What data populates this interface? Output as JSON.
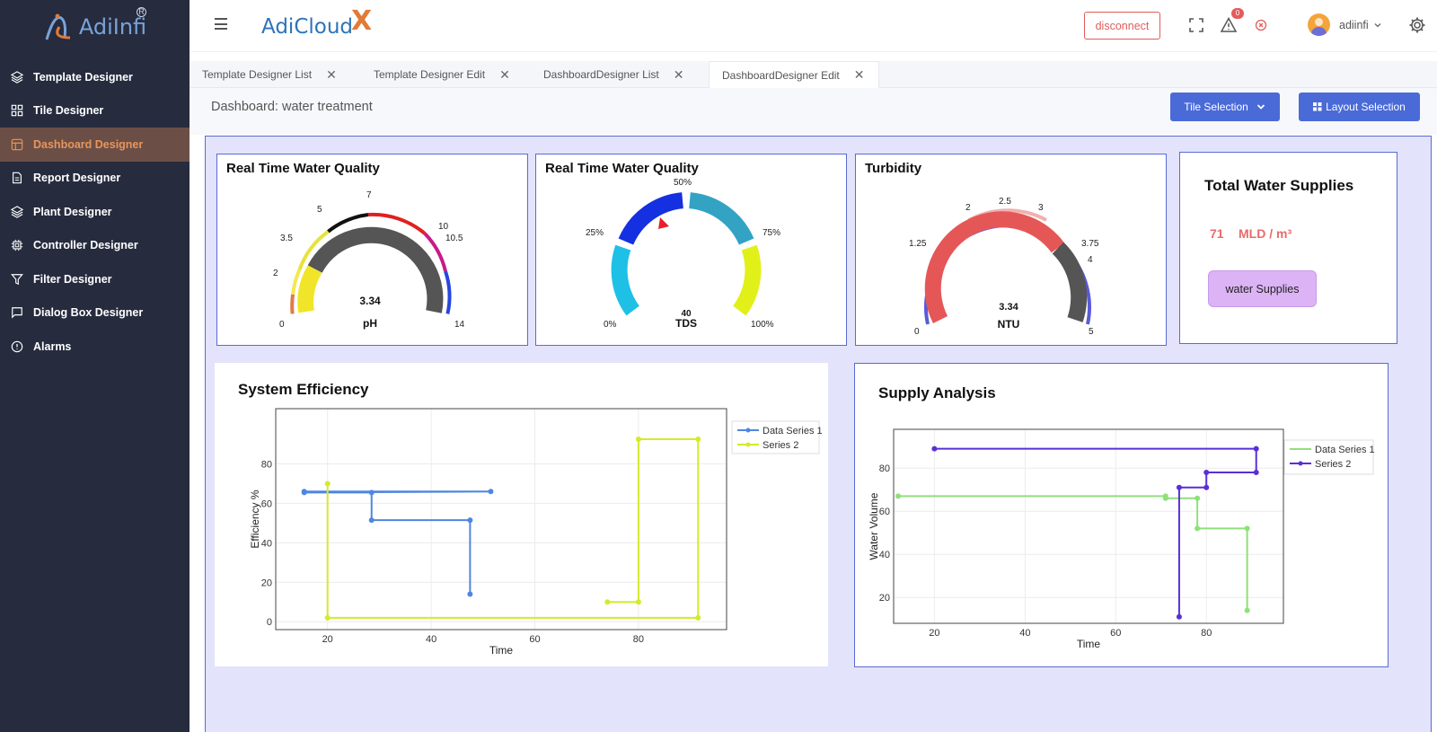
{
  "app": {
    "logo_text": "AdiInfi",
    "brand_text": "AdiCloud",
    "brand_x": "X"
  },
  "sidebar": {
    "items": [
      {
        "label": "Template Designer",
        "icon": "layers-icon"
      },
      {
        "label": "Tile Designer",
        "icon": "grid-icon"
      },
      {
        "label": "Dashboard Designer",
        "icon": "layout-icon",
        "active": true
      },
      {
        "label": "Report Designer",
        "icon": "document-icon"
      },
      {
        "label": "Plant Designer",
        "icon": "layers-icon"
      },
      {
        "label": "Controller Designer",
        "icon": "chip-icon"
      },
      {
        "label": "Filter Designer",
        "icon": "filter-icon"
      },
      {
        "label": "Dialog Box Designer",
        "icon": "message-icon"
      },
      {
        "label": "Alarms",
        "icon": "alert-circle-icon"
      }
    ]
  },
  "header": {
    "disconnect_label": "disconnect",
    "notification_count": "0",
    "user_name": "adiinfi"
  },
  "tabs": [
    {
      "label": "Template Designer List"
    },
    {
      "label": "Template Designer Edit"
    },
    {
      "label": "DashboardDesigner List"
    },
    {
      "label": "DashboardDesigner Edit",
      "active": true
    }
  ],
  "page": {
    "title": "Dashboard: water treatment",
    "tile_selection_label": "Tile Selection",
    "layout_selection_label": "Layout Selection"
  },
  "gauges": [
    {
      "title": "Real Time Water Quality",
      "value": "3.34",
      "unit": "pH",
      "tick_labels": [
        "0",
        "2",
        "3.5",
        "5",
        "7",
        "10",
        "10.5",
        "14"
      ]
    },
    {
      "title": "Real Time Water Quality",
      "value": "40",
      "unit": "TDS",
      "tick_labels": [
        "0%",
        "25%",
        "50%",
        "75%",
        "100%"
      ]
    },
    {
      "title": "Turbidity",
      "value": "3.34",
      "unit": "NTU",
      "tick_labels": [
        "0",
        "1.25",
        "2",
        "2.5",
        "3",
        "3.75",
        "4",
        "5"
      ]
    }
  ],
  "supplies": {
    "title": "Total Water Supplies",
    "value": "71",
    "unit": "MLD / m³",
    "button_label": "water Supplies"
  },
  "chart_data": [
    {
      "type": "line",
      "title": "System Efficiency",
      "xlabel": "Time",
      "ylabel": "Efficiency %",
      "xlim": [
        10,
        97
      ],
      "ylim": [
        -4,
        108
      ],
      "xticks": [
        20,
        40,
        60,
        80
      ],
      "yticks": [
        0,
        20,
        40,
        60,
        80
      ],
      "step": true,
      "legend_position": "top-right",
      "series": [
        {
          "name": "Data Series 1",
          "color": "#4f86e0",
          "points": [
            [
              15.5,
              66
            ],
            [
              51.5,
              66
            ],
            [
              15.5,
              65.5
            ],
            [
              28.5,
              65.5
            ],
            [
              28.5,
              51.5
            ],
            [
              47.5,
              51.5
            ],
            [
              47.5,
              14
            ]
          ]
        },
        {
          "name": "Series 2",
          "color": "#d4ea2a",
          "points": [
            [
              20,
              70
            ],
            [
              20,
              2
            ],
            [
              91.5,
              2
            ],
            [
              91.5,
              92.5
            ],
            [
              80,
              92.5
            ],
            [
              80,
              10
            ],
            [
              74,
              10
            ]
          ]
        }
      ]
    },
    {
      "type": "line",
      "title": "Supply Analysis",
      "xlabel": "Time",
      "ylabel": "Water Volume",
      "xlim": [
        11,
        97
      ],
      "ylim": [
        8,
        98
      ],
      "xticks": [
        20,
        40,
        60,
        80
      ],
      "yticks": [
        20,
        40,
        60,
        80
      ],
      "step": true,
      "legend_position": "top-right",
      "series": [
        {
          "name": "Data Series 1",
          "color": "#8fe07a",
          "points": [
            [
              12,
              67
            ],
            [
              71,
              67
            ],
            [
              71,
              66
            ],
            [
              78,
              66
            ],
            [
              78,
              52
            ],
            [
              89,
              52
            ],
            [
              89,
              14
            ]
          ]
        },
        {
          "name": "Series 2",
          "color": "#5a2fd6",
          "points": [
            [
              20,
              89
            ],
            [
              91,
              89
            ],
            [
              91,
              78
            ],
            [
              80,
              78
            ],
            [
              80,
              71
            ],
            [
              74,
              71
            ],
            [
              74,
              11
            ]
          ]
        }
      ]
    }
  ]
}
